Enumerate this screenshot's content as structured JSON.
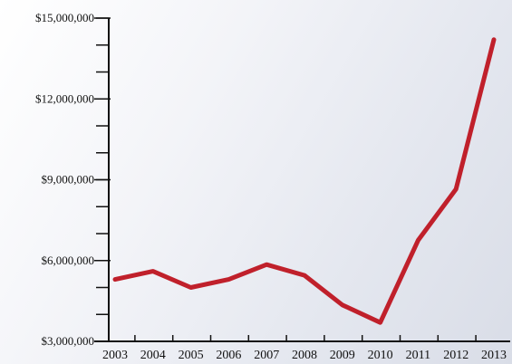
{
  "chart_data": {
    "type": "line",
    "title": "",
    "xlabel": "",
    "ylabel": "",
    "categories": [
      "2003",
      "2004",
      "2005",
      "2006",
      "2007",
      "2008",
      "2009",
      "2010",
      "2011",
      "2012",
      "2013"
    ],
    "series": [
      {
        "values": [
          5300000,
          5600000,
          5000000,
          5300000,
          5850000,
          5450000,
          4350000,
          3700000,
          6750000,
          8650000,
          14200000
        ],
        "color": "#c0202b"
      }
    ],
    "ylim": [
      3000000,
      15000000
    ],
    "yticks_major": [
      3000000,
      6000000,
      9000000,
      12000000,
      15000000
    ],
    "ytick_labels": [
      "$3,000,000",
      "$6,000,000",
      "$9,000,000",
      "$12,000,000",
      "$15,000,000"
    ],
    "yticks_minor_step": 1000000,
    "grid": false,
    "legend": "none"
  }
}
